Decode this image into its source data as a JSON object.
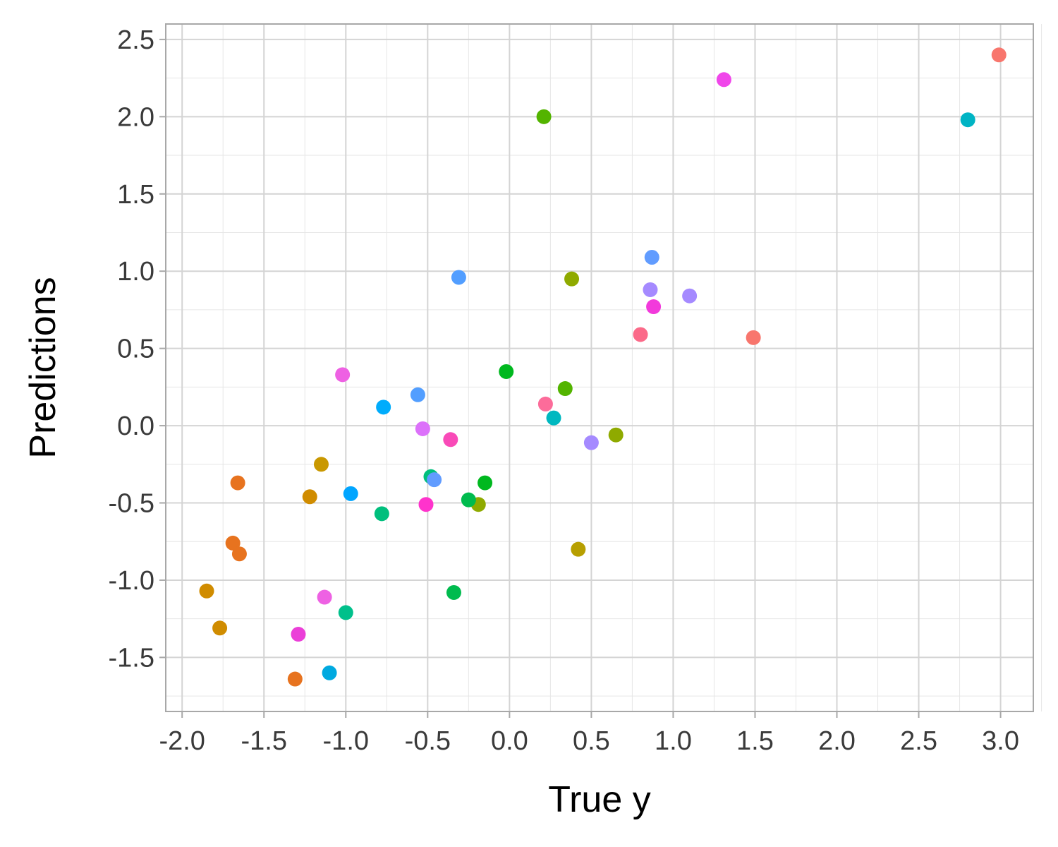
{
  "chart_data": {
    "type": "scatter",
    "title": "",
    "xlabel": "True y",
    "ylabel": "Predictions",
    "xlim": [
      -2.1,
      3.2
    ],
    "ylim": [
      -1.85,
      2.6
    ],
    "x_ticks": [
      -2.0,
      -1.5,
      -1.0,
      -0.5,
      0.0,
      0.5,
      1.0,
      1.5,
      2.0,
      2.5,
      3.0
    ],
    "x_tick_labels": [
      "-2.0",
      "-1.5",
      "-1.0",
      "-0.5",
      "0.0",
      "0.5",
      "1.0",
      "1.5",
      "2.0",
      "2.5",
      "3.0"
    ],
    "y_ticks": [
      -1.5,
      -1.0,
      -0.5,
      0.0,
      0.5,
      1.0,
      1.5,
      2.0,
      2.5
    ],
    "y_tick_labels": [
      "-1.5",
      "-1.0",
      "-0.5",
      "0.0",
      "0.5",
      "1.0",
      "1.5",
      "2.0",
      "2.5"
    ],
    "grid": true,
    "legend": "none",
    "points": [
      {
        "x": 2.99,
        "y": 2.4,
        "color": "#F8766D"
      },
      {
        "x": 1.49,
        "y": 0.57,
        "color": "#F8766D"
      },
      {
        "x": 0.8,
        "y": 0.59,
        "color": "#FB6A89"
      },
      {
        "x": 0.22,
        "y": 0.14,
        "color": "#FC6C9A"
      },
      {
        "x": -1.66,
        "y": -0.37,
        "color": "#E7731F"
      },
      {
        "x": -1.69,
        "y": -0.76,
        "color": "#E7731F"
      },
      {
        "x": -1.65,
        "y": -0.83,
        "color": "#E7731F"
      },
      {
        "x": -1.31,
        "y": -1.64,
        "color": "#E7731F"
      },
      {
        "x": -1.85,
        "y": -1.07,
        "color": "#D08C00"
      },
      {
        "x": -1.77,
        "y": -1.31,
        "color": "#D08C00"
      },
      {
        "x": -1.22,
        "y": -0.46,
        "color": "#D08C00"
      },
      {
        "x": -1.15,
        "y": -0.25,
        "color": "#C99800"
      },
      {
        "x": 0.42,
        "y": -0.8,
        "color": "#B79F00"
      },
      {
        "x": 0.38,
        "y": 0.95,
        "color": "#8FAA00"
      },
      {
        "x": 0.65,
        "y": -0.06,
        "color": "#8FAA00"
      },
      {
        "x": -0.19,
        "y": -0.51,
        "color": "#8FAA00"
      },
      {
        "x": 0.21,
        "y": 2.0,
        "color": "#53B400"
      },
      {
        "x": 0.34,
        "y": 0.24,
        "color": "#53B400"
      },
      {
        "x": -0.02,
        "y": 0.35,
        "color": "#00B81F"
      },
      {
        "x": -0.15,
        "y": -0.37,
        "color": "#00B81F"
      },
      {
        "x": -0.34,
        "y": -1.08,
        "color": "#00BB4E"
      },
      {
        "x": -0.25,
        "y": -0.48,
        "color": "#00BB4E"
      },
      {
        "x": -0.48,
        "y": -0.33,
        "color": "#00BF7D"
      },
      {
        "x": -0.78,
        "y": -0.57,
        "color": "#00BF7D"
      },
      {
        "x": -1.0,
        "y": -1.21,
        "color": "#00C08B"
      },
      {
        "x": 2.8,
        "y": 1.98,
        "color": "#00B4C4"
      },
      {
        "x": 0.27,
        "y": 0.05,
        "color": "#00B8C0"
      },
      {
        "x": -0.77,
        "y": 0.12,
        "color": "#00ACFC"
      },
      {
        "x": -1.1,
        "y": -1.6,
        "color": "#00A9E0"
      },
      {
        "x": -0.97,
        "y": -0.44,
        "color": "#00A5FF"
      },
      {
        "x": -0.56,
        "y": 0.2,
        "color": "#529EFF"
      },
      {
        "x": -0.31,
        "y": 0.96,
        "color": "#529EFF"
      },
      {
        "x": -0.46,
        "y": -0.35,
        "color": "#619CFF"
      },
      {
        "x": 0.87,
        "y": 1.09,
        "color": "#619CFF"
      },
      {
        "x": 0.86,
        "y": 0.88,
        "color": "#A58AFF"
      },
      {
        "x": 1.1,
        "y": 0.84,
        "color": "#A58AFF"
      },
      {
        "x": 0.5,
        "y": -0.11,
        "color": "#A58AFF"
      },
      {
        "x": -0.53,
        "y": -0.02,
        "color": "#DC71FA"
      },
      {
        "x": -1.02,
        "y": 0.33,
        "color": "#EE61E3"
      },
      {
        "x": -1.13,
        "y": -1.11,
        "color": "#EE61E3"
      },
      {
        "x": 1.31,
        "y": 2.24,
        "color": "#F046EA"
      },
      {
        "x": -1.29,
        "y": -1.35,
        "color": "#EB3FD8"
      },
      {
        "x": -0.51,
        "y": -0.51,
        "color": "#FF33CC"
      },
      {
        "x": -0.36,
        "y": -0.09,
        "color": "#F94AB8"
      },
      {
        "x": 0.88,
        "y": 0.77,
        "color": "#F23ADB"
      }
    ]
  }
}
